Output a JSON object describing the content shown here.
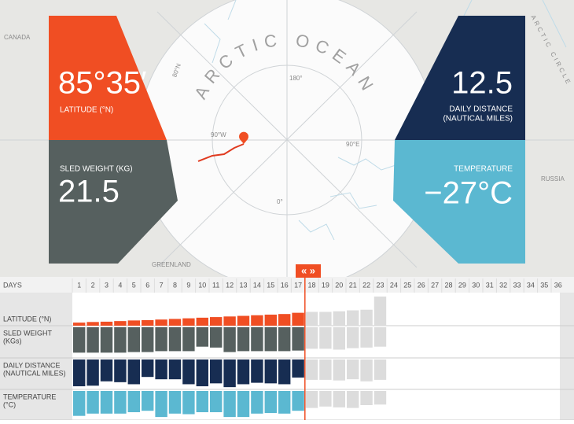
{
  "map": {
    "title": "ARCTIC OCEAN",
    "canada": "CANADA",
    "greenland": "GREENLAND",
    "russia": "RUSSIA",
    "arctic_circle": "ARCTIC CIRCLE",
    "lat80": "80°N",
    "lon180": "180°",
    "lon90w": "90°W",
    "lon90e": "90°E",
    "lon0": "0°"
  },
  "panels": {
    "latitude": {
      "value": "85°35′",
      "label": "LATITUDE (°N)"
    },
    "sled_weight": {
      "value": "21.5",
      "label": "SLED WEIGHT (KG)"
    },
    "daily_distance": {
      "value": "12.5",
      "label": [
        "DAILY DISTANCE",
        "(NAUTICAL MILES)"
      ]
    },
    "temperature": {
      "value": "−27°C",
      "label": "TEMPERATURE"
    }
  },
  "timeline": {
    "days_label": "DAYS",
    "days": [
      1,
      2,
      3,
      4,
      5,
      6,
      7,
      8,
      9,
      10,
      11,
      12,
      13,
      14,
      15,
      16,
      17,
      18,
      19,
      20,
      21,
      22,
      23,
      24,
      25,
      26,
      27,
      28,
      29,
      30,
      31,
      32,
      33,
      34,
      35,
      36
    ],
    "projected_color": "#dcdcdc",
    "rows": [
      {
        "label": [
          "LATITUDE (°N)"
        ],
        "color": "#f04e23",
        "anchor": "bottom",
        "values": [
          10,
          12,
          13,
          15,
          17,
          18,
          20,
          22,
          24,
          26,
          28,
          30,
          32,
          34,
          36,
          38,
          42
        ],
        "projected": [
          45,
          45,
          47,
          50,
          52,
          95
        ]
      },
      {
        "label": [
          "SLED WEIGHT",
          "(KGs)"
        ],
        "color": "#56605f",
        "anchor": "top",
        "values": [
          85,
          85,
          85,
          85,
          83,
          83,
          80,
          80,
          80,
          65,
          68,
          83,
          80,
          80,
          80,
          80,
          78
        ],
        "projected": [
          72,
          72,
          75,
          70,
          68,
          65
        ]
      },
      {
        "label": [
          "DAILY DISTANCE",
          "(NAUTICAL MILES)"
        ],
        "color": "#172d52",
        "anchor": "top",
        "values": [
          92,
          90,
          75,
          78,
          85,
          60,
          68,
          68,
          85,
          92,
          82,
          95,
          85,
          80,
          82,
          85,
          62
        ],
        "projected": [
          70,
          70,
          72,
          68,
          75,
          70
        ]
      },
      {
        "label": [
          "TEMPERATURE",
          "(°C)"
        ],
        "color": "#5bb8d1",
        "anchor": "top",
        "values": [
          88,
          80,
          80,
          80,
          75,
          70,
          92,
          80,
          82,
          75,
          75,
          92,
          92,
          80,
          78,
          80,
          70
        ],
        "projected": [
          60,
          55,
          58,
          60,
          50,
          48
        ]
      }
    ]
  }
}
